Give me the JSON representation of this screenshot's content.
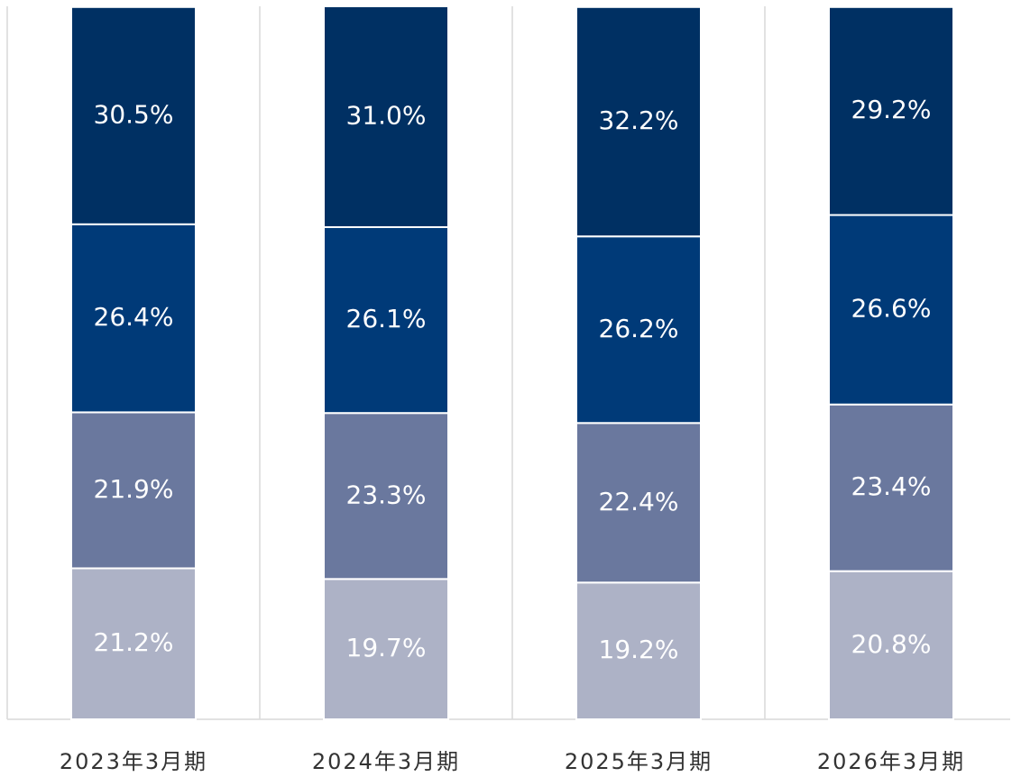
{
  "chart_data": {
    "type": "stacked_bar",
    "categories": [
      "2023年3月期",
      "2024年3月期",
      "2025年3月期",
      "2026年3月期"
    ],
    "series": [
      {
        "color": "#adb2c6",
        "values": [
          21.2,
          19.7,
          19.2,
          20.8
        ],
        "value_labels": [
          "21.2%",
          "19.7%",
          "19.2%",
          "20.8%"
        ]
      },
      {
        "color": "#6a789e",
        "values": [
          21.9,
          23.3,
          22.4,
          23.4
        ],
        "value_labels": [
          "21.9%",
          "23.3%",
          "22.4%",
          "23.4%"
        ]
      },
      {
        "color": "#003a78",
        "values": [
          26.4,
          26.1,
          26.2,
          26.6
        ],
        "value_labels": [
          "26.4%",
          "26.1%",
          "26.2%",
          "26.6%"
        ]
      },
      {
        "color": "#003063",
        "values": [
          30.5,
          31.0,
          32.2,
          29.2
        ],
        "value_labels": [
          "30.5%",
          "31.0%",
          "32.2%",
          "29.2%"
        ]
      }
    ]
  }
}
